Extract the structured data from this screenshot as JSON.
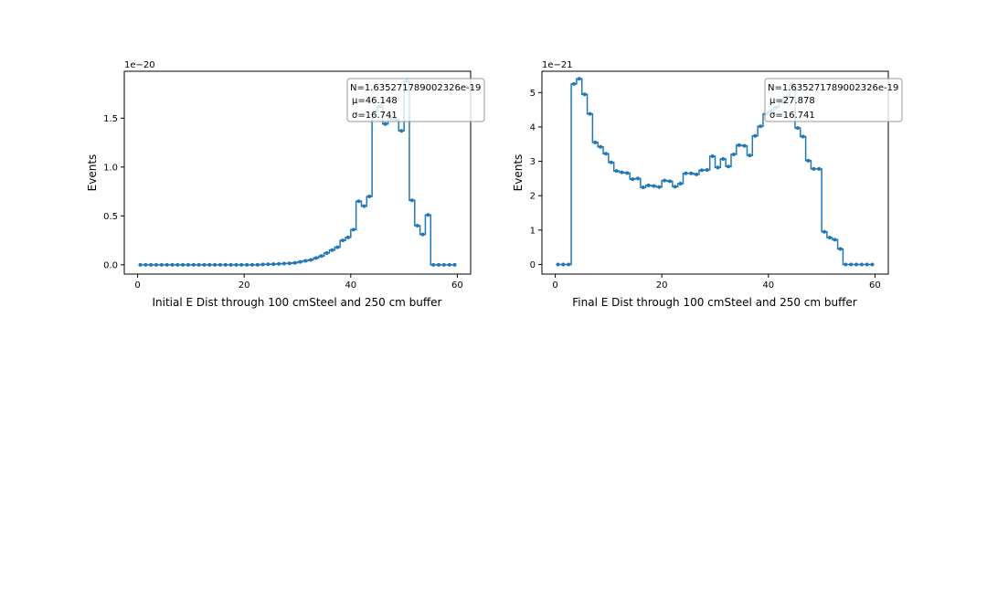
{
  "chart_data": [
    {
      "type": "line",
      "step": true,
      "xlabel": "Initial E Dist through 100 cmSteel and 250 cm buffer",
      "ylabel": "Events",
      "offset_text": "1e−20",
      "scale": 1e-20,
      "xlim": [
        -2.5,
        62.5
      ],
      "ylim": [
        -0.095,
        1.98
      ],
      "xticks": [
        0,
        20,
        40,
        60
      ],
      "xtick_labels": [
        "0",
        "20",
        "40",
        "60"
      ],
      "yticks": [
        0,
        0.5,
        1.0,
        1.5
      ],
      "ytick_labels": [
        "0.0",
        "0.5",
        "1.0",
        "1.5"
      ],
      "color": "#1f77b4",
      "grid": false,
      "legend_position": "top-right",
      "legend_lines": [
        "N=1.635271789002326e-19",
        "μ=46.148",
        "σ=16.741"
      ],
      "x": [
        0.5,
        1.5,
        2.5,
        3.5,
        4.5,
        5.5,
        6.5,
        7.5,
        8.5,
        9.5,
        10.5,
        11.5,
        12.5,
        13.5,
        14.5,
        15.5,
        16.5,
        17.5,
        18.5,
        19.5,
        20.5,
        21.5,
        22.5,
        23.5,
        24.5,
        25.5,
        26.5,
        27.5,
        28.5,
        29.5,
        30.5,
        31.5,
        32.5,
        33.5,
        34.5,
        35.5,
        36.5,
        37.5,
        38.5,
        39.5,
        40.5,
        41.5,
        42.5,
        43.5,
        44.5,
        45.5,
        46.5,
        47.5,
        48.5,
        49.5,
        50.5,
        51.5,
        52.5,
        53.5,
        54.5,
        55.5,
        56.5,
        57.5,
        58.5,
        59.5
      ],
      "values": [
        0,
        0,
        0,
        0,
        0,
        0,
        0,
        0,
        0,
        0,
        0,
        0,
        0,
        0,
        0,
        0,
        0,
        0,
        0,
        0,
        0,
        0,
        0,
        0.003,
        0.005,
        0.007,
        0.009,
        0.012,
        0.015,
        0.02,
        0.03,
        0.04,
        0.05,
        0.07,
        0.09,
        0.12,
        0.15,
        0.18,
        0.25,
        0.28,
        0.36,
        0.65,
        0.6,
        0.7,
        1.57,
        1.62,
        1.44,
        1.5,
        1.49,
        1.37,
        1.88,
        0.66,
        0.4,
        0.31,
        0.51,
        0,
        0,
        0,
        0,
        0
      ]
    },
    {
      "type": "line",
      "step": true,
      "xlabel": "Final E Dist through 100 cmSteel and 250 cm buffer",
      "ylabel": "Events",
      "offset_text": "1e−21",
      "scale": 1e-21,
      "xlim": [
        -2.5,
        62.5
      ],
      "ylim": [
        -0.28,
        5.62
      ],
      "xticks": [
        0,
        20,
        40,
        60
      ],
      "xtick_labels": [
        "0",
        "20",
        "40",
        "60"
      ],
      "yticks": [
        0,
        1,
        2,
        3,
        4,
        5
      ],
      "ytick_labels": [
        "0",
        "1",
        "2",
        "3",
        "4",
        "5"
      ],
      "color": "#1f77b4",
      "grid": false,
      "legend_position": "top-right",
      "legend_lines": [
        "N=1.635271789002326e-19",
        "μ=27.878",
        "σ=16.741"
      ],
      "x": [
        0.5,
        1.5,
        2.5,
        3.5,
        4.5,
        5.5,
        6.5,
        7.5,
        8.5,
        9.5,
        10.5,
        11.5,
        12.5,
        13.5,
        14.5,
        15.5,
        16.5,
        17.5,
        18.5,
        19.5,
        20.5,
        21.5,
        22.5,
        23.5,
        24.5,
        25.5,
        26.5,
        27.5,
        28.5,
        29.5,
        30.5,
        31.5,
        32.5,
        33.5,
        34.5,
        35.5,
        36.5,
        37.5,
        38.5,
        39.5,
        40.5,
        41.5,
        42.5,
        43.5,
        44.5,
        45.5,
        46.5,
        47.5,
        48.5,
        49.5,
        50.5,
        51.5,
        52.5,
        53.5,
        54.5,
        55.5,
        56.5,
        57.5,
        58.5,
        59.5
      ],
      "values": [
        0,
        0,
        0,
        5.25,
        5.4,
        4.95,
        4.38,
        3.55,
        3.42,
        3.22,
        2.97,
        2.72,
        2.68,
        2.66,
        2.48,
        2.5,
        2.24,
        2.3,
        2.28,
        2.25,
        2.44,
        2.42,
        2.26,
        2.35,
        2.65,
        2.65,
        2.62,
        2.74,
        2.75,
        3.15,
        2.82,
        3.07,
        2.85,
        3.2,
        3.47,
        3.45,
        3.17,
        3.74,
        4.02,
        4.38,
        4.45,
        4.57,
        4.73,
        4.86,
        5.25,
        3.97,
        3.72,
        3.02,
        2.78,
        2.78,
        0.95,
        0.78,
        0.72,
        0.45,
        0,
        0,
        0,
        0,
        0,
        0
      ]
    }
  ]
}
